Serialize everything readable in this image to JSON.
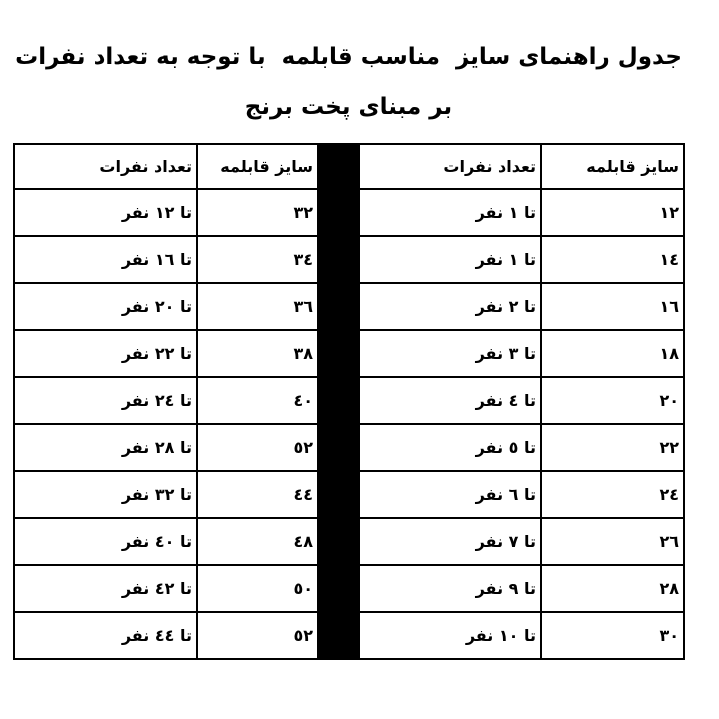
{
  "title": [
    "جدول راهنمای سایز  مناسب قابلمه  با توجه به تعداد نفرات",
    "بر مبنای پخت برنج"
  ],
  "table": {
    "headers": [
      "سایز قابلمه",
      "تعداد نفرات",
      "سایز قابلمه",
      "تعداد نفرات"
    ],
    "rows": [
      [
        "١٢",
        "تا ١ نفر",
        "٣٢",
        "تا ١٢ نفر"
      ],
      [
        "١٤",
        "تا ١ نفر",
        "٣٤",
        "تا ١٦ نفر"
      ],
      [
        "١٦",
        "تا ٢ نفر",
        "٣٦",
        "تا ٢٠ نفر"
      ],
      [
        "١٨",
        "تا ٣ نفر",
        "٣٨",
        "تا ٢٢ نفر"
      ],
      [
        "٢٠",
        "تا ٤ نفر",
        "٤٠",
        "تا ٢٤ نفر"
      ],
      [
        "٢٢",
        "تا ٥ نفر",
        "٥٢",
        "تا ٢٨ نفر"
      ],
      [
        "٢٤",
        "تا ٦ نفر",
        "٤٤",
        "تا ٣٢ نفر"
      ],
      [
        "٢٦",
        "تا ٧ نفر",
        "٤٨",
        "تا ٤٠ نفر"
      ],
      [
        "٢٨",
        "تا ٩ نفر",
        "٥٠",
        "تا ٤٢ نفر"
      ],
      [
        "٣٠",
        "تا ١٠ نفر",
        "٥٢",
        "تا ٤٤ نفر"
      ]
    ]
  }
}
